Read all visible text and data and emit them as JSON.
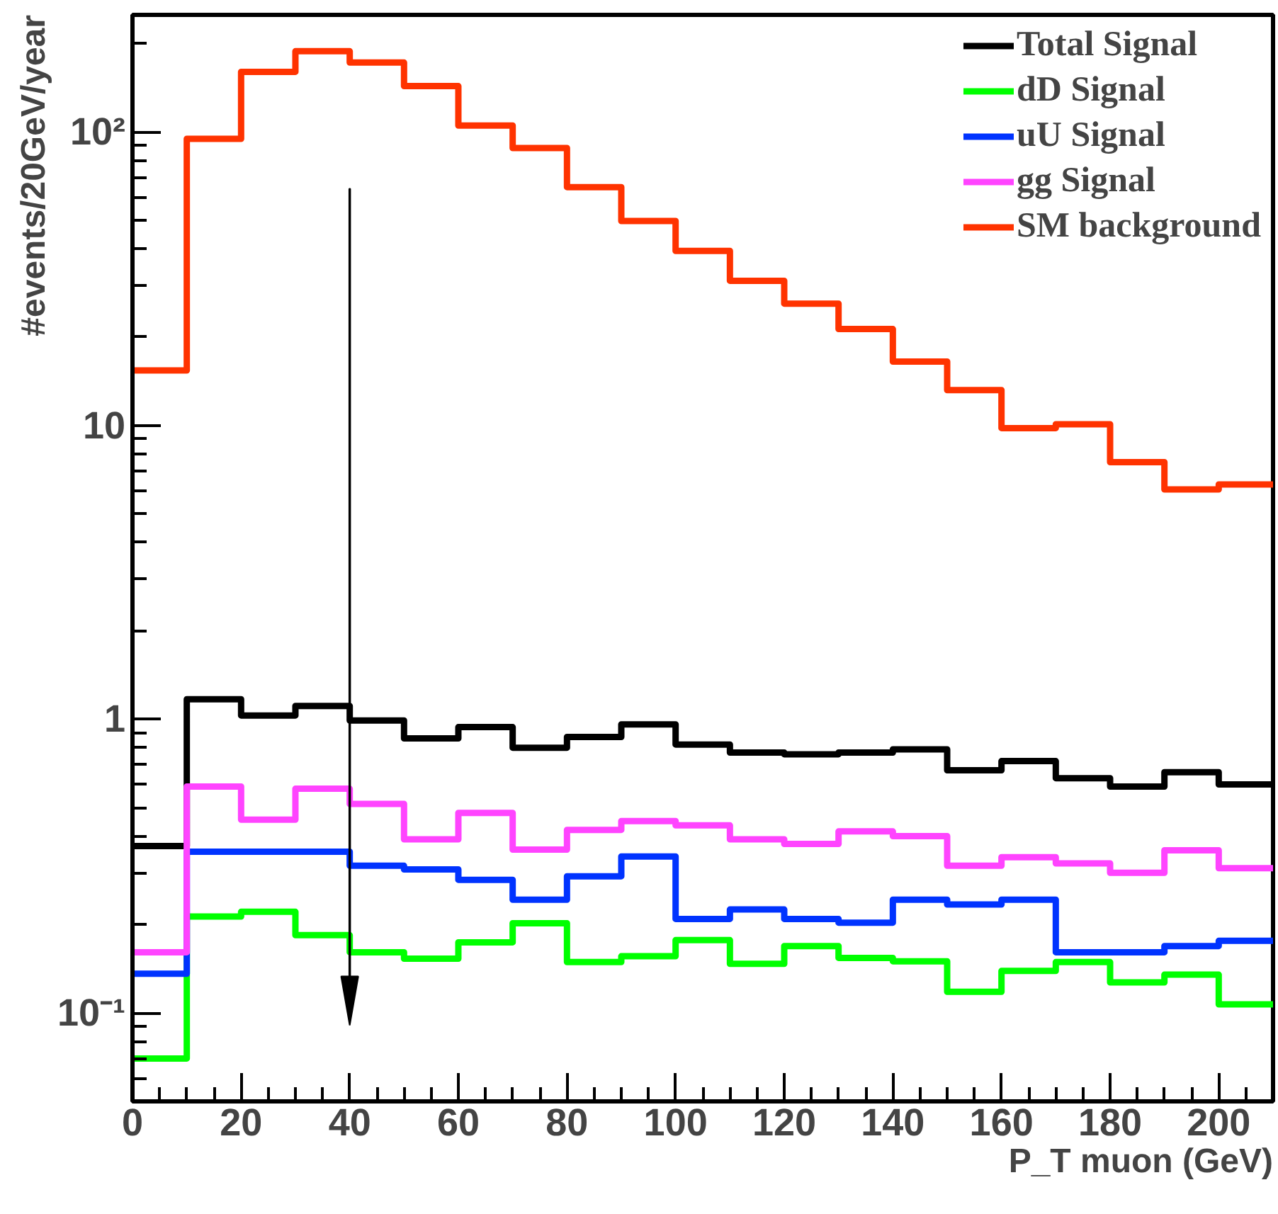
{
  "chart_data": {
    "type": "histogram",
    "xlabel": "P_T muon (GeV)",
    "ylabel": "#events/20GeV/year",
    "bins": [
      0,
      10,
      20,
      30,
      40,
      50,
      60,
      70,
      80,
      90,
      100,
      110,
      120,
      130,
      140,
      150,
      160,
      170,
      180,
      190,
      200,
      210
    ],
    "series": [
      {
        "name": "Total Signal",
        "color": "#000000",
        "values": [
          0.37,
          1.17,
          1.03,
          1.11,
          0.99,
          0.86,
          0.94,
          0.8,
          0.87,
          0.96,
          0.82,
          0.77,
          0.76,
          0.77,
          0.79,
          0.67,
          0.72,
          0.63,
          0.59,
          0.66,
          0.6
        ]
      },
      {
        "name": "dD Signal",
        "color": "#00ff00",
        "values": [
          0.07,
          0.213,
          0.221,
          0.184,
          0.161,
          0.153,
          0.174,
          0.202,
          0.149,
          0.156,
          0.177,
          0.147,
          0.169,
          0.154,
          0.15,
          0.118,
          0.139,
          0.149,
          0.127,
          0.135,
          0.107
        ]
      },
      {
        "name": "uU Signal",
        "color": "#0033ff",
        "values": [
          0.136,
          0.354,
          0.354,
          0.354,
          0.317,
          0.308,
          0.284,
          0.243,
          0.292,
          0.341,
          0.209,
          0.225,
          0.209,
          0.203,
          0.243,
          0.234,
          0.243,
          0.161,
          0.161,
          0.169,
          0.176
        ]
      },
      {
        "name": "gg Signal",
        "color": "#ff44ff",
        "values": [
          0.161,
          0.59,
          0.455,
          0.58,
          0.515,
          0.39,
          0.48,
          0.36,
          0.42,
          0.45,
          0.435,
          0.39,
          0.376,
          0.415,
          0.4,
          0.317,
          0.339,
          0.323,
          0.3,
          0.358,
          0.311
        ]
      },
      {
        "name": "SM background",
        "color": "#ff3300",
        "values": [
          15.4,
          94.6,
          160,
          188,
          172,
          143,
          105,
          88,
          64.8,
          49.7,
          39.3,
          31.1,
          26,
          21.3,
          16.5,
          13.2,
          9.8,
          10.1,
          7.5,
          6.06,
          6.3
        ]
      }
    ],
    "ref_lines": [
      {
        "axis": "x",
        "value": 40,
        "color": "#000000"
      }
    ],
    "log": "y",
    "xlim": [
      0,
      210
    ],
    "ylim": [
      0.05,
      250
    ],
    "xticks": [
      0,
      20,
      40,
      60,
      80,
      100,
      120,
      140,
      160,
      180,
      200
    ],
    "yticks": [
      {
        "value": 0.1,
        "label": "10⁻¹"
      },
      1,
      10,
      {
        "value": 100,
        "label": "10²"
      }
    ],
    "grid": false,
    "legend": "top right"
  }
}
